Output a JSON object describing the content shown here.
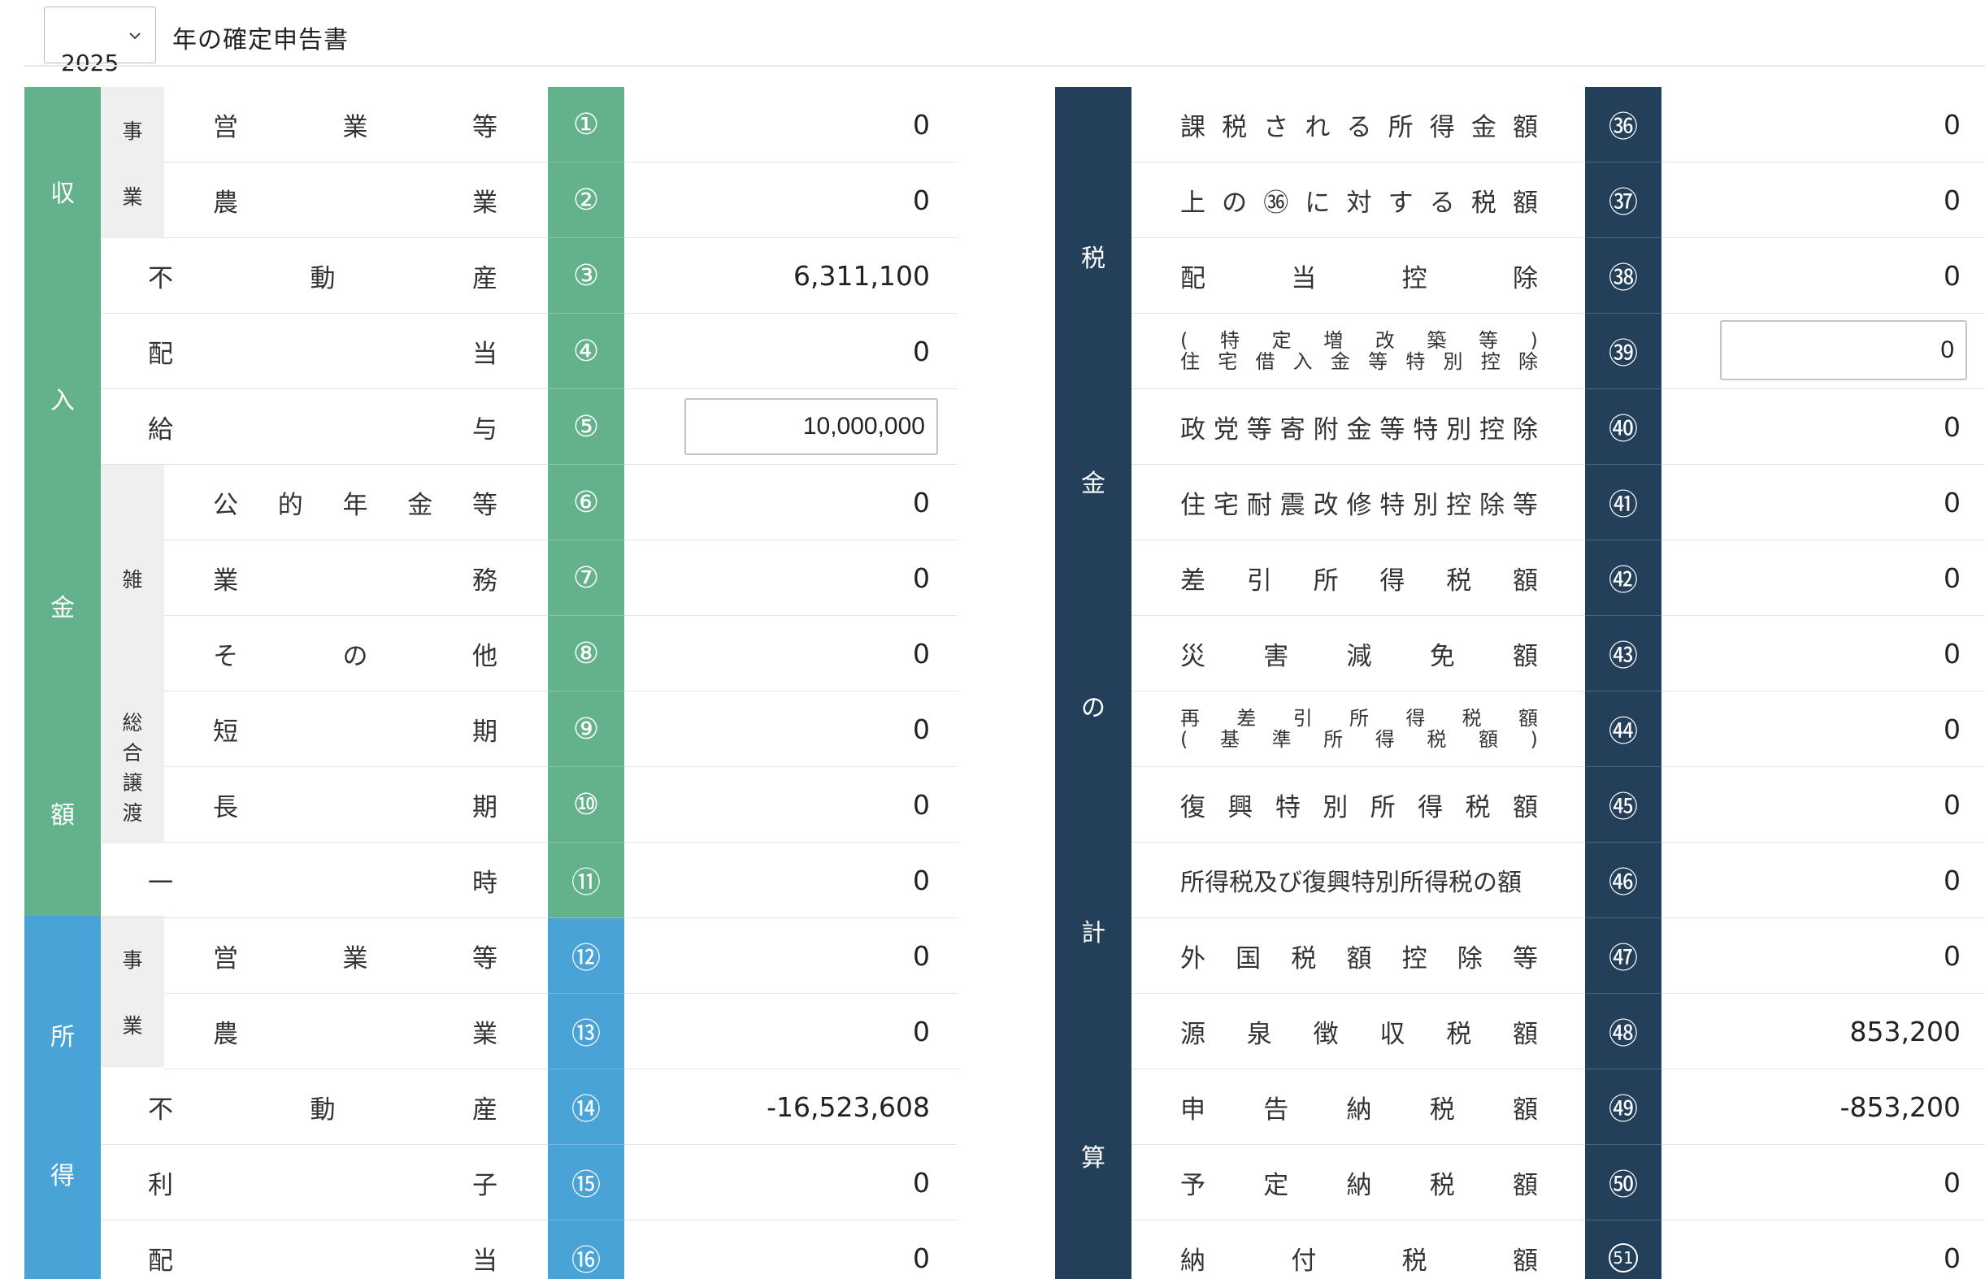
{
  "header": {
    "year": "2025",
    "title": "年の確定申告書"
  },
  "colors": {
    "income_green": "#63b28b",
    "income_blue": "#4aa3d7",
    "tax_navy": "#243f5a"
  },
  "left": {
    "income_category_chars": [
      "収",
      "入",
      "金",
      "額"
    ],
    "shotoku_category_chars": [
      "所",
      "得"
    ],
    "sub_jigyo": [
      "事",
      "業"
    ],
    "sub_zatsu": "雑",
    "sub_sogo": [
      "総",
      "合",
      "譲",
      "渡"
    ],
    "rows": [
      {
        "label": [
          "営",
          "業",
          "等"
        ],
        "num": "①",
        "value": "0"
      },
      {
        "label": [
          "農",
          "業"
        ],
        "num": "②",
        "value": "0"
      },
      {
        "label": [
          "不",
          "動",
          "産"
        ],
        "num": "③",
        "value": "6,311,100"
      },
      {
        "label": [
          "配",
          "当"
        ],
        "num": "④",
        "value": "0"
      },
      {
        "label": [
          "給",
          "与"
        ],
        "num": "⑤",
        "value": "10,000,000"
      },
      {
        "label": [
          "公",
          "的",
          "年",
          "金",
          "等"
        ],
        "num": "⑥",
        "value": "0"
      },
      {
        "label": [
          "業",
          "務"
        ],
        "num": "⑦",
        "value": "0"
      },
      {
        "label": [
          "そ",
          "の",
          "他"
        ],
        "num": "⑧",
        "value": "0"
      },
      {
        "label": [
          "短",
          "期"
        ],
        "num": "⑨",
        "value": "0"
      },
      {
        "label": [
          "長",
          "期"
        ],
        "num": "⑩",
        "value": "0"
      },
      {
        "label": [
          "一",
          "時"
        ],
        "num": "⑪",
        "value": "0"
      },
      {
        "label": [
          "営",
          "業",
          "等"
        ],
        "num": "⑫",
        "value": "0"
      },
      {
        "label": [
          "農",
          "業"
        ],
        "num": "⑬",
        "value": "0"
      },
      {
        "label": [
          "不",
          "動",
          "産"
        ],
        "num": "⑭",
        "value": "-16,523,608"
      },
      {
        "label": [
          "利",
          "子"
        ],
        "num": "⑮",
        "value": "0"
      },
      {
        "label": [
          "配",
          "当"
        ],
        "num": "⑯",
        "value": "0"
      }
    ]
  },
  "right": {
    "category_chars": [
      "税",
      "金",
      "の",
      "計",
      "算"
    ],
    "rows": [
      {
        "label": [
          "課",
          "税",
          "さ",
          "れ",
          "る",
          "所",
          "得",
          "金",
          "額"
        ],
        "num": "㊱",
        "value": "0"
      },
      {
        "label": [
          "上",
          "の",
          "㊱",
          "に",
          "対",
          "す",
          "る",
          "税",
          "額"
        ],
        "num": "㊲",
        "value": "0"
      },
      {
        "label": [
          "配",
          "当",
          "控",
          "除"
        ],
        "num": "㊳",
        "value": "0"
      },
      {
        "label_top": [
          "(",
          "特",
          "定",
          "増",
          "改",
          "築",
          "等",
          ")"
        ],
        "label_bottom": [
          "住",
          "宅",
          "借",
          "入",
          "金",
          "等",
          "特",
          "別",
          "控",
          "除"
        ],
        "num": "㊴",
        "value": "0"
      },
      {
        "label": [
          "政",
          "党",
          "等",
          "寄",
          "附",
          "金",
          "等",
          "特",
          "別",
          "控",
          "除"
        ],
        "num": "㊵",
        "value": "0"
      },
      {
        "label": [
          "住",
          "宅",
          "耐",
          "震",
          "改",
          "修",
          "特",
          "別",
          "控",
          "除",
          "等"
        ],
        "num": "㊶",
        "value": "0"
      },
      {
        "label": [
          "差",
          "引",
          "所",
          "得",
          "税",
          "額"
        ],
        "num": "㊷",
        "value": "0"
      },
      {
        "label": [
          "災",
          "害",
          "減",
          "免",
          "額"
        ],
        "num": "㊸",
        "value": "0"
      },
      {
        "label_top": [
          "再",
          "差",
          "引",
          "所",
          "得",
          "税",
          "額"
        ],
        "label_bottom": [
          "(",
          "基",
          "準",
          "所",
          "得",
          "税",
          "額",
          ")"
        ],
        "num": "㊹",
        "value": "0"
      },
      {
        "label": [
          "復",
          "興",
          "特",
          "別",
          "所",
          "得",
          "税",
          "額"
        ],
        "num": "㊺",
        "value": "0"
      },
      {
        "label_text": "所得税及び復興特別所得税の額",
        "num": "㊻",
        "value": "0"
      },
      {
        "label": [
          "外",
          "国",
          "税",
          "額",
          "控",
          "除",
          "等"
        ],
        "num": "㊼",
        "value": "0"
      },
      {
        "label": [
          "源",
          "泉",
          "徴",
          "収",
          "税",
          "額"
        ],
        "num": "㊽",
        "value": "853,200"
      },
      {
        "label": [
          "申",
          "告",
          "納",
          "税",
          "額"
        ],
        "num": "㊾",
        "value": "-853,200"
      },
      {
        "label": [
          "予",
          "定",
          "納",
          "税",
          "額"
        ],
        "num": "㊿",
        "value": "0"
      },
      {
        "label": [
          "納",
          "付",
          "税",
          "額"
        ],
        "num": "51",
        "value": "0"
      }
    ]
  }
}
